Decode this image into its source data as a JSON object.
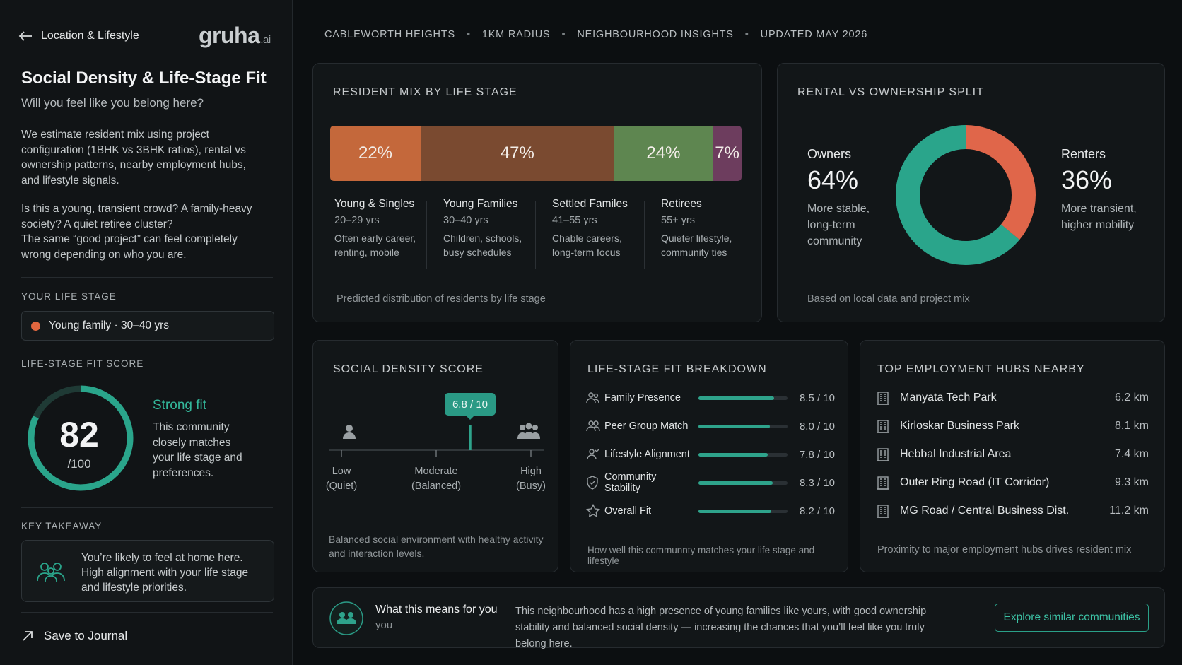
{
  "sidebar": {
    "back_label": "Location & Lifestyle",
    "logo_text": "gruha",
    "logo_suffix": ".ai",
    "title": "Social Density & Life-Stage Fit",
    "subtitle": "Will you feel like you belong here?",
    "intro": "We estimate resident mix using project configuration (1BHK vs 3BHK ratios), rental vs ownership patterns, nearby employment hubs, and lifestyle signals.",
    "question_1": "Is this a young, transient crowd? A family-heavy society? A quiet retiree cluster?",
    "question_2": "The same “good project” can feel completely wrong depending on who you are.",
    "life_stage_label": "YOUR LIFE STAGE",
    "life_stage_value": "Young family · 30–40 yrs",
    "fit_score_label": "LIFE-STAGE FIT SCORE",
    "fit_score": "82",
    "fit_score_max": "/100",
    "fit_score_fraction": 0.82,
    "fit_verdict": "Strong fit",
    "fit_description": "This community closely matches your life stage and preferences.",
    "takeaway_label": "KEY TAKEAWAY",
    "takeaway_text": "You’re likely to feel at home here. High alignment with your life stage and lifestyle priorities.",
    "save_label": "Save to Journal"
  },
  "header": {
    "items": [
      "CABLEWORTH HEIGHTS",
      "1KM RADIUS",
      "NEIGHBOURHOOD INSIGHTS",
      "UPDATED MAY 2026"
    ]
  },
  "resident_mix": {
    "title": "RESIDENT MIX BY LIFE STAGE",
    "segments": [
      {
        "pct": "22%",
        "value": 22,
        "color": "#c4683b",
        "name": "Young & Singles",
        "age": "20–29 yrs",
        "desc_1": "Often early career,",
        "desc_2": "renting, mobile"
      },
      {
        "pct": "47%",
        "value": 47,
        "color": "#7a4a30",
        "name": "Young Families",
        "age": "30–40 yrs",
        "desc_1": "Children, schools,",
        "desc_2": "busy schedules"
      },
      {
        "pct": "24%",
        "value": 24,
        "color": "#5e8650",
        "name": "Settled Familes",
        "age": "41–55 yrs",
        "desc_1": "Chable careers,",
        "desc_2": "long-term focus"
      },
      {
        "pct": "7%",
        "value": 7,
        "color": "#6d3d5e",
        "name": "Retirees",
        "age": "55+ yrs",
        "desc_1": "Quieter lifestyle,",
        "desc_2": "community ties"
      }
    ],
    "footnote": "Predicted distribution of residents by life stage"
  },
  "ownership": {
    "title": "RENTAL VS OWNERSHIP SPLIT",
    "owners_label": "Owners",
    "owners_pct": "64%",
    "owners_value": 64,
    "owners_desc": "More stable, long-term community",
    "renters_label": "Renters",
    "renters_pct": "36%",
    "renters_value": 36,
    "renters_desc": "More transient, higher mobility",
    "owners_color": "#2aa58b",
    "renters_color": "#e0664a",
    "footnote": "Based on local data and project mix"
  },
  "density": {
    "title": "SOCIAL DENSITY SCORE",
    "score_label": "6.8 / 10",
    "score": 6.8,
    "low": "Low",
    "low_sub": "(Quiet)",
    "mid": "Moderate",
    "mid_sub": "(Balanced)",
    "high": "High",
    "high_sub": "(Busy)",
    "footnote": "Balanced social environment with healthy activity and interaction levels."
  },
  "breakdown": {
    "title": "LIFE-STAGE FIT BREAKDOWN",
    "rows": [
      {
        "icon": "family-icon",
        "label": "Family Presence",
        "value_text": "8.5 / 10",
        "value": 8.5
      },
      {
        "icon": "peer-group-icon",
        "label": "Peer Group Match",
        "value_text": "8.0 / 10",
        "value": 8.0
      },
      {
        "icon": "lifestyle-icon",
        "label": "Lifestyle Alignment",
        "value_text": "7.8 / 10",
        "value": 7.8
      },
      {
        "icon": "shield-icon",
        "label": "Community Stability",
        "value_text": "8.3 / 10",
        "value": 8.3
      },
      {
        "icon": "star-icon",
        "label": "Overall Fit",
        "value_text": "8.2 / 10",
        "value": 8.2
      }
    ],
    "footnote": "How well this communnty matches your life stage and lifestyle"
  },
  "hubs": {
    "title": "TOP EMPLOYMENT HUBS NEARBY",
    "rows": [
      {
        "name": "Manyata Tech Park",
        "distance": "6.2 km"
      },
      {
        "name": "Kirloskar Business Park",
        "distance": "8.1 km"
      },
      {
        "name": "Hebbal Industrial Area",
        "distance": "7.4 km"
      },
      {
        "name": "Outer Ring Road (IT Corridor)",
        "distance": "9.3 km"
      },
      {
        "name": "MG Road / Central Business Dist.",
        "distance": "11.2 km"
      }
    ],
    "footnote": "Proximity to major employment hubs drives resident mix"
  },
  "banner": {
    "title": "What this means for you",
    "title_sub": "you",
    "text": "This neighbourhood has a high presence of young families like yours, with good ownership stability and balanced social density — increasing the chances that you’ll feel like you truly belong here.",
    "button_label": "Explore similar communities"
  },
  "colors": {
    "accent": "#2ea38b",
    "orange_dot": "#e0663f"
  }
}
